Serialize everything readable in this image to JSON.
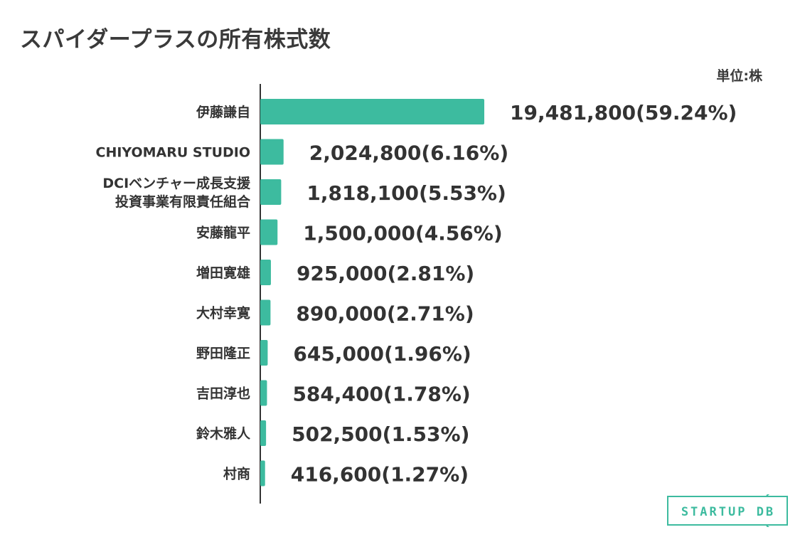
{
  "title": "スパイダープラスの所有株式数",
  "unit_label": "単位:株",
  "logo_text": "STARTUP DB",
  "colors": {
    "bar": "#3dbb9f",
    "text": "#333333",
    "axis": "#333333",
    "logo": "#3dbb9f"
  },
  "chart_data": {
    "type": "bar",
    "orientation": "horizontal",
    "title": "スパイダープラスの所有株式数",
    "unit": "単位:株",
    "categories": [
      [
        "伊藤謙自"
      ],
      [
        "CHIYOMARU STUDIO"
      ],
      [
        "DCIベンチャー成長支援",
        "投資事業有限責任組合"
      ],
      [
        "安藤龍平"
      ],
      [
        "増田寛雄"
      ],
      [
        "大村幸寛"
      ],
      [
        "野田隆正"
      ],
      [
        "吉田淳也"
      ],
      [
        "鈴木雅人"
      ],
      [
        "村商"
      ]
    ],
    "values": [
      19481800,
      2024800,
      1818100,
      1500000,
      925000,
      890000,
      645000,
      584400,
      502500,
      416600
    ],
    "data_labels": [
      "19,481,800(59.24%)",
      "2,024,800(6.16%)",
      "1,818,100(5.53%)",
      "1,500,000(4.56%)",
      "925,000(2.81%)",
      "890,000(2.71%)",
      "645,000(1.96%)",
      "584,400(1.78%)",
      "502,500(1.53%)",
      "416,600(1.27%)"
    ],
    "xlim": [
      0,
      19481800
    ],
    "grid": false,
    "legend": "none"
  }
}
